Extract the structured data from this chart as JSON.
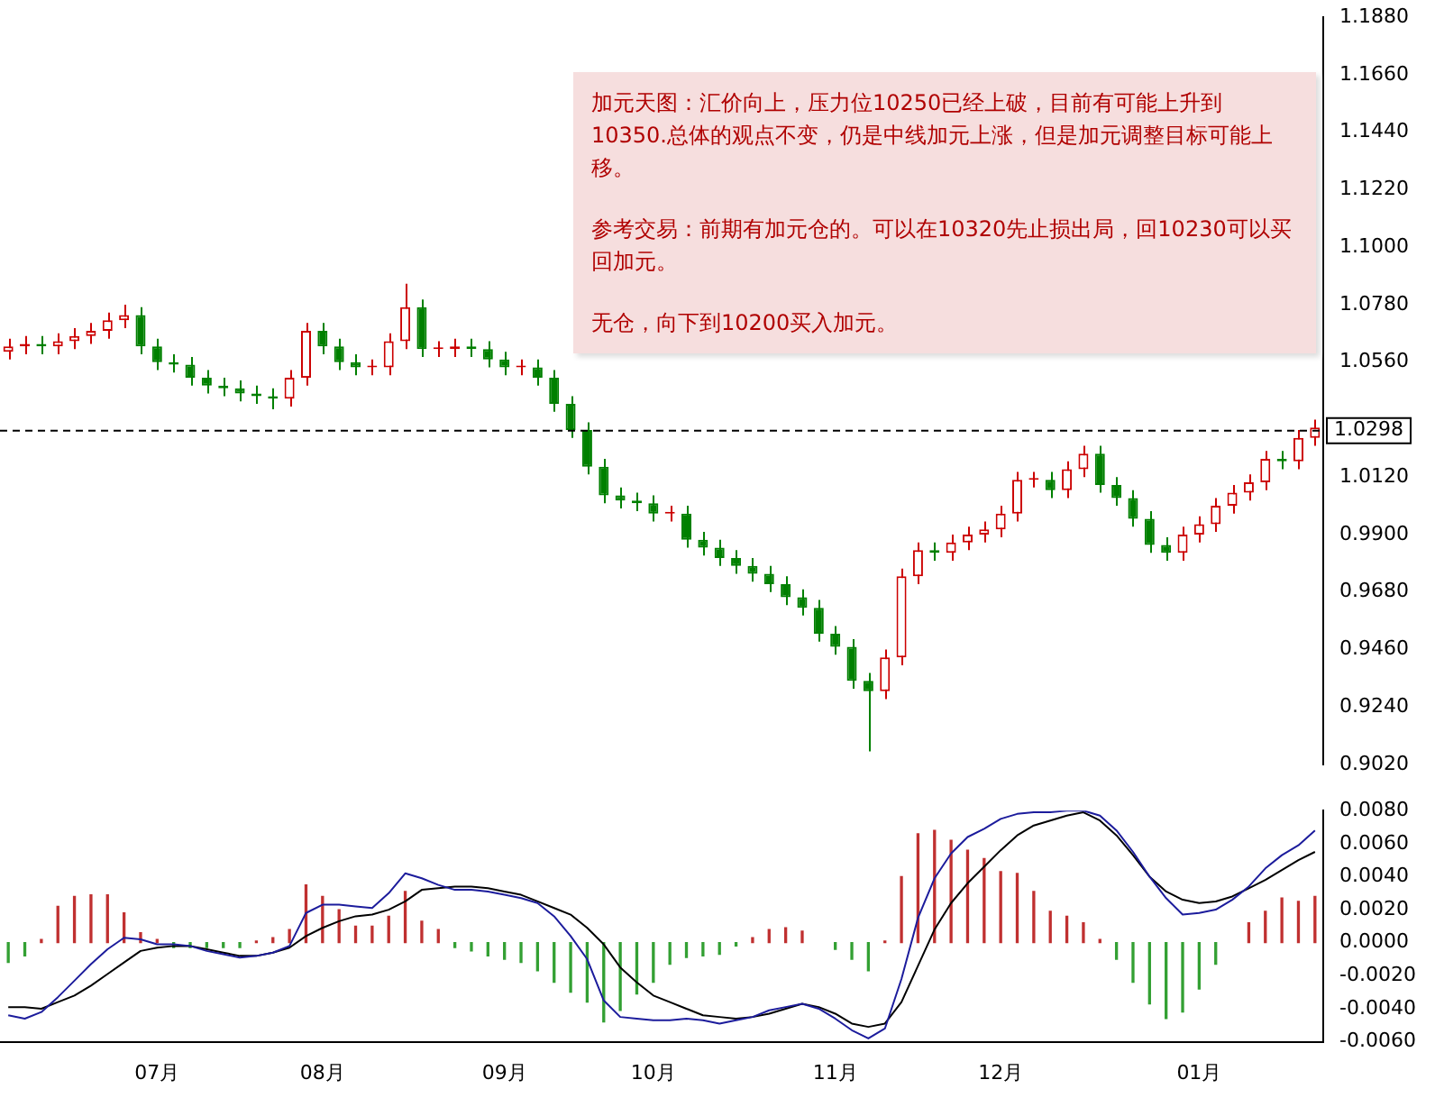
{
  "chart_data": [
    {
      "type": "candlestick",
      "categories": [
        null,
        null,
        null,
        null,
        null,
        null,
        null,
        null,
        null,
        null,
        null,
        null,
        null,
        null,
        null,
        null,
        null,
        null,
        null,
        null,
        null,
        null,
        null,
        null,
        null,
        null,
        null,
        null,
        null,
        null,
        null,
        null,
        null,
        null,
        null,
        null,
        null,
        null,
        null,
        null,
        null,
        null,
        null,
        null,
        null,
        null,
        null,
        null,
        null,
        null,
        null,
        null,
        null,
        null,
        null,
        null,
        null,
        null,
        null,
        null,
        null,
        null,
        null,
        null,
        null,
        null,
        null,
        null,
        null,
        null,
        null,
        null,
        null,
        null,
        null,
        null,
        null,
        null,
        null,
        null
      ],
      "ohlc": [
        [
          1.06,
          1.065,
          1.057,
          1.062
        ],
        [
          1.062,
          1.066,
          1.059,
          1.063
        ],
        [
          1.063,
          1.066,
          1.059,
          1.062
        ],
        [
          1.062,
          1.067,
          1.059,
          1.064
        ],
        [
          1.064,
          1.069,
          1.061,
          1.066
        ],
        [
          1.066,
          1.071,
          1.063,
          1.068
        ],
        [
          1.068,
          1.075,
          1.065,
          1.072
        ],
        [
          1.072,
          1.078,
          1.069,
          1.074
        ],
        [
          1.074,
          1.077,
          1.059,
          1.062
        ],
        [
          1.062,
          1.065,
          1.053,
          1.056
        ],
        [
          1.056,
          1.059,
          1.052,
          1.055
        ],
        [
          1.055,
          1.058,
          1.047,
          1.05
        ],
        [
          1.05,
          1.053,
          1.044,
          1.047
        ],
        [
          1.047,
          1.05,
          1.043,
          1.046
        ],
        [
          1.046,
          1.049,
          1.041,
          1.044
        ],
        [
          1.044,
          1.047,
          1.04,
          1.043
        ],
        [
          1.043,
          1.046,
          1.038,
          1.042
        ],
        [
          1.042,
          1.053,
          1.039,
          1.05
        ],
        [
          1.05,
          1.071,
          1.047,
          1.068
        ],
        [
          1.068,
          1.071,
          1.059,
          1.062
        ],
        [
          1.062,
          1.065,
          1.053,
          1.056
        ],
        [
          1.056,
          1.059,
          1.051,
          1.054
        ],
        [
          1.054,
          1.057,
          1.051,
          1.054
        ],
        [
          1.054,
          1.067,
          1.051,
          1.064
        ],
        [
          1.064,
          1.086,
          1.061,
          1.077
        ],
        [
          1.077,
          1.08,
          1.058,
          1.061
        ],
        [
          1.061,
          1.064,
          1.058,
          1.061
        ],
        [
          1.061,
          1.065,
          1.058,
          1.062
        ],
        [
          1.062,
          1.065,
          1.058,
          1.061
        ],
        [
          1.061,
          1.064,
          1.054,
          1.057
        ],
        [
          1.057,
          1.06,
          1.051,
          1.054
        ],
        [
          1.054,
          1.057,
          1.051,
          1.054
        ],
        [
          1.054,
          1.057,
          1.047,
          1.05
        ],
        [
          1.05,
          1.053,
          1.037,
          1.04
        ],
        [
          1.04,
          1.043,
          1.027,
          1.03
        ],
        [
          1.03,
          1.033,
          1.013,
          1.016
        ],
        [
          1.016,
          1.019,
          1.002,
          1.005
        ],
        [
          1.005,
          1.008,
          1.0,
          1.003
        ],
        [
          1.003,
          1.006,
          0.999,
          1.002
        ],
        [
          1.002,
          1.005,
          0.995,
          0.998
        ],
        [
          0.998,
          1.001,
          0.995,
          0.998
        ],
        [
          0.998,
          1.001,
          0.985,
          0.988
        ],
        [
          0.988,
          0.991,
          0.982,
          0.985
        ],
        [
          0.985,
          0.988,
          0.978,
          0.981
        ],
        [
          0.981,
          0.984,
          0.975,
          0.978
        ],
        [
          0.978,
          0.981,
          0.972,
          0.975
        ],
        [
          0.975,
          0.978,
          0.968,
          0.971
        ],
        [
          0.971,
          0.974,
          0.963,
          0.966
        ],
        [
          0.966,
          0.969,
          0.959,
          0.962
        ],
        [
          0.962,
          0.965,
          0.949,
          0.952
        ],
        [
          0.952,
          0.955,
          0.944,
          0.947
        ],
        [
          0.947,
          0.95,
          0.931,
          0.934
        ],
        [
          0.934,
          0.937,
          0.907,
          0.93
        ],
        [
          0.93,
          0.946,
          0.927,
          0.943
        ],
        [
          0.943,
          0.977,
          0.94,
          0.974
        ],
        [
          0.974,
          0.987,
          0.971,
          0.984
        ],
        [
          0.984,
          0.987,
          0.98,
          0.983
        ],
        [
          0.983,
          0.99,
          0.98,
          0.987
        ],
        [
          0.987,
          0.993,
          0.984,
          0.99
        ],
        [
          0.99,
          0.995,
          0.987,
          0.992
        ],
        [
          0.992,
          1.001,
          0.989,
          0.998
        ],
        [
          0.998,
          1.014,
          0.995,
          1.011
        ],
        [
          1.011,
          1.014,
          1.008,
          1.011
        ],
        [
          1.011,
          1.014,
          1.004,
          1.007
        ],
        [
          1.007,
          1.018,
          1.004,
          1.015
        ],
        [
          1.015,
          1.024,
          1.012,
          1.021
        ],
        [
          1.021,
          1.024,
          1.006,
          1.009
        ],
        [
          1.009,
          1.012,
          1.001,
          1.004
        ],
        [
          1.004,
          1.007,
          0.993,
          0.996
        ],
        [
          0.996,
          0.999,
          0.983,
          0.986
        ],
        [
          0.986,
          0.989,
          0.98,
          0.983
        ],
        [
          0.983,
          0.993,
          0.98,
          0.99
        ],
        [
          0.99,
          0.997,
          0.987,
          0.994
        ],
        [
          0.994,
          1.004,
          0.991,
          1.001
        ],
        [
          1.001,
          1.009,
          0.998,
          1.006
        ],
        [
          1.006,
          1.013,
          1.003,
          1.01
        ],
        [
          1.01,
          1.022,
          1.007,
          1.019
        ],
        [
          1.019,
          1.022,
          1.015,
          1.018
        ],
        [
          1.018,
          1.03,
          1.015,
          1.027
        ],
        [
          1.027,
          1.034,
          1.024,
          1.031
        ]
      ],
      "colors": [
        "#cc0000",
        "#cc0000",
        "#008000",
        "#cc0000",
        "#cc0000",
        "#cc0000",
        "#cc0000",
        "#cc0000",
        "#008000",
        "#008000",
        "#008000",
        "#008000",
        "#008000",
        "#008000",
        "#008000",
        "#008000",
        "#008000",
        "#cc0000",
        "#cc0000",
        "#008000",
        "#008000",
        "#008000",
        "#cc0000",
        "#cc0000",
        "#cc0000",
        "#008000",
        "#cc0000",
        "#cc0000",
        "#008000",
        "#008000",
        "#008000",
        "#cc0000",
        "#008000",
        "#008000",
        "#008000",
        "#008000",
        "#008000",
        "#008000",
        "#008000",
        "#008000",
        "#cc0000",
        "#008000",
        "#008000",
        "#008000",
        "#008000",
        "#008000",
        "#008000",
        "#008000",
        "#008000",
        "#008000",
        "#008000",
        "#008000",
        "#008000",
        "#cc0000",
        "#cc0000",
        "#cc0000",
        "#008000",
        "#cc0000",
        "#cc0000",
        "#cc0000",
        "#cc0000",
        "#cc0000",
        "#cc0000",
        "#008000",
        "#cc0000",
        "#cc0000",
        "#008000",
        "#008000",
        "#008000",
        "#008000",
        "#008000",
        "#cc0000",
        "#cc0000",
        "#cc0000",
        "#cc0000",
        "#cc0000",
        "#cc0000",
        "#008000",
        "#cc0000",
        "#cc0000"
      ],
      "ylim": [
        0.902,
        1.188
      ],
      "yticks": [
        {
          "value": 0.902,
          "label": "0.9020"
        },
        {
          "value": 0.924,
          "label": "0.9240"
        },
        {
          "value": 0.946,
          "label": "0.9460"
        },
        {
          "value": 0.968,
          "label": "0.9680"
        },
        {
          "value": 0.99,
          "label": "0.9900"
        },
        {
          "value": 1.012,
          "label": "1.0120"
        },
        {
          "value": 1.056,
          "label": "1.0560"
        },
        {
          "value": 1.078,
          "label": "1.0780"
        },
        {
          "value": 1.1,
          "label": "1.1000"
        },
        {
          "value": 1.122,
          "label": "1.1220"
        },
        {
          "value": 1.144,
          "label": "1.1440"
        },
        {
          "value": 1.166,
          "label": "1.1660"
        },
        {
          "value": 1.188,
          "label": "1.1880"
        }
      ],
      "ref_lines": [
        {
          "axis": "y",
          "value": 1.0298,
          "label": "1.0298",
          "color": "#000000",
          "line_style": "dashed"
        }
      ],
      "annotations": [
        "加元天图：汇价向上，压力位10250已经上破，目前有可能上升到10350.总体的观点不变，仍是中线加元上涨，但是加元调整目标可能上移。",
        "参考交易：前期有加元仓的。可以在10320先止损出局，回10230可以买回加元。",
        "无仓，向下到10200买入加元。"
      ],
      "tick_labels": "y",
      "grid": false,
      "legend": false
    },
    {
      "type": "bar",
      "categories": [
        null,
        null,
        null,
        null,
        null,
        null,
        null,
        null,
        null,
        "07月",
        null,
        null,
        null,
        null,
        null,
        null,
        null,
        null,
        null,
        "08月",
        null,
        null,
        null,
        null,
        null,
        null,
        null,
        null,
        null,
        null,
        "09月",
        null,
        null,
        null,
        null,
        null,
        null,
        null,
        null,
        "10月",
        null,
        null,
        null,
        null,
        null,
        null,
        null,
        null,
        null,
        null,
        "11月",
        null,
        null,
        null,
        null,
        null,
        null,
        null,
        null,
        null,
        "12月",
        null,
        null,
        null,
        null,
        null,
        null,
        null,
        null,
        null,
        null,
        null,
        "01月",
        null,
        null,
        null,
        null,
        null,
        null,
        null
      ],
      "series": [
        {
          "type": "bar",
          "values": [
            -0.0012,
            -0.0008,
            0.0002,
            0.0022,
            0.0028,
            0.0029,
            0.0029,
            0.0018,
            0.0006,
            0.0002,
            -0.0003,
            -0.0003,
            -0.0003,
            -0.0003,
            -0.0003,
            0.0001,
            0.0003,
            0.0008,
            0.0035,
            0.0028,
            0.002,
            0.001,
            0.001,
            0.0016,
            0.0031,
            0.0013,
            0.0008,
            -0.0003,
            -0.0005,
            -0.0008,
            -0.001,
            -0.0012,
            -0.0017,
            -0.0024,
            -0.003,
            -0.0036,
            -0.0048,
            -0.0041,
            -0.0031,
            -0.0024,
            -0.0013,
            -0.0009,
            -0.0008,
            -0.0007,
            -0.0002,
            0.0003,
            0.0008,
            0.0009,
            0.0007,
            null,
            -0.0004,
            -0.001,
            -0.0017,
            0.0001,
            0.004,
            0.0066,
            0.0068,
            0.0062,
            0.0056,
            0.0051,
            0.0043,
            0.0042,
            0.0031,
            0.0019,
            0.0016,
            0.0012,
            0.0002,
            -0.001,
            -0.0024,
            -0.0037,
            -0.0046,
            -0.0042,
            -0.0028,
            -0.0013,
            null,
            0.0012,
            0.0019,
            0.0027,
            0.0025,
            0.0028
          ],
          "colors": [
            "#33a033",
            "#33a033",
            "#c03030",
            "#c03030",
            "#c03030",
            "#c03030",
            "#c03030",
            "#c03030",
            "#c03030",
            "#c03030",
            "#33a033",
            "#33a033",
            "#33a033",
            "#33a033",
            "#33a033",
            "#c03030",
            "#c03030",
            "#c03030",
            "#c03030",
            "#c03030",
            "#c03030",
            "#c03030",
            "#c03030",
            "#c03030",
            "#c03030",
            "#c03030",
            "#c03030",
            "#33a033",
            "#33a033",
            "#33a033",
            "#33a033",
            "#33a033",
            "#33a033",
            "#33a033",
            "#33a033",
            "#33a033",
            "#33a033",
            "#33a033",
            "#33a033",
            "#33a033",
            "#33a033",
            "#33a033",
            "#33a033",
            "#33a033",
            "#33a033",
            "#c03030",
            "#c03030",
            "#c03030",
            "#c03030",
            "#c03030",
            "#33a033",
            "#33a033",
            "#33a033",
            "#c03030",
            "#c03030",
            "#c03030",
            "#c03030",
            "#c03030",
            "#c03030",
            "#c03030",
            "#c03030",
            "#c03030",
            "#c03030",
            "#c03030",
            "#c03030",
            "#c03030",
            "#c03030",
            "#33a033",
            "#33a033",
            "#33a033",
            "#33a033",
            "#33a033",
            "#33a033",
            "#33a033",
            "#c03030",
            "#c03030",
            "#c03030",
            "#c03030",
            "#c03030",
            "#c03030"
          ]
        },
        {
          "type": "line",
          "color": "#1c1c9c",
          "values": [
            -0.0044,
            -0.0046,
            -0.0042,
            -0.0033,
            -0.0023,
            -0.0013,
            -0.0004,
            0.0003,
            0.0002,
            -0.0001,
            -0.0001,
            -0.0002,
            -0.0005,
            -0.0007,
            -0.0009,
            -0.0008,
            -0.0006,
            -0.0002,
            0.0018,
            0.0023,
            0.0023,
            0.0022,
            0.0021,
            0.003,
            0.0042,
            0.0039,
            0.0035,
            0.0032,
            0.0032,
            0.0031,
            0.0029,
            0.0027,
            0.0024,
            0.0016,
            0.0004,
            -0.001,
            -0.0035,
            -0.0045,
            -0.0046,
            -0.0047,
            -0.0047,
            -0.0046,
            -0.0047,
            -0.0049,
            -0.0047,
            -0.0045,
            -0.0041,
            -0.0039,
            -0.0037,
            -0.004,
            -0.0046,
            -0.0053,
            -0.0058,
            -0.0052,
            -0.0022,
            0.0015,
            0.0039,
            0.0054,
            0.0064,
            0.0069,
            0.0075,
            0.0078,
            0.0079,
            0.0079,
            0.008,
            0.008,
            0.0077,
            0.0068,
            0.0055,
            0.004,
            0.0027,
            0.0017,
            0.0018,
            0.002,
            0.0026,
            0.0034,
            0.0045,
            0.0053,
            0.0059,
            0.0068
          ]
        },
        {
          "type": "line",
          "color": "#000000",
          "values": [
            -0.0039,
            -0.0039,
            -0.004,
            -0.0036,
            -0.0032,
            -0.0026,
            -0.0019,
            -0.0012,
            -0.0005,
            -0.0003,
            -0.0002,
            -0.0002,
            -0.0004,
            -0.0006,
            -0.0008,
            -0.0008,
            -0.0006,
            -0.0003,
            0.0004,
            0.0009,
            0.0013,
            0.0016,
            0.0017,
            0.002,
            0.0025,
            0.0032,
            0.0033,
            0.0034,
            0.0034,
            0.0033,
            0.0031,
            0.0029,
            0.0025,
            0.0021,
            0.0017,
            0.0009,
            -0.0001,
            -0.0015,
            -0.0024,
            -0.0032,
            -0.0036,
            -0.004,
            -0.0044,
            -0.0045,
            -0.0046,
            -0.0045,
            -0.0043,
            -0.004,
            -0.0037,
            -0.0039,
            -0.0043,
            -0.0049,
            -0.0051,
            -0.0049,
            -0.0036,
            -0.0014,
            0.0008,
            0.0024,
            0.0036,
            0.0046,
            0.0056,
            0.0065,
            0.0071,
            0.0074,
            0.0077,
            0.0079,
            0.0074,
            0.0065,
            0.0053,
            0.004,
            0.0031,
            0.0026,
            0.0024,
            0.0025,
            0.0028,
            0.0033,
            0.0038,
            0.0044,
            0.005,
            0.0055
          ]
        }
      ],
      "ylim": [
        -0.006,
        0.008
      ],
      "yticks": [
        {
          "value": 0.008,
          "label": "0.0080"
        },
        {
          "value": 0.006,
          "label": "0.0060"
        },
        {
          "value": 0.004,
          "label": "0.0040"
        },
        {
          "value": 0.002,
          "label": "0.0020"
        },
        {
          "value": 0,
          "label": "0.0000"
        },
        {
          "value": -0.002,
          "label": "-0.0020"
        },
        {
          "value": -0.004,
          "label": "-0.0040"
        },
        {
          "value": -0.006,
          "label": "-0.0060"
        }
      ],
      "marker": "none",
      "line_style": "solid",
      "grid": false,
      "legend": false
    }
  ]
}
